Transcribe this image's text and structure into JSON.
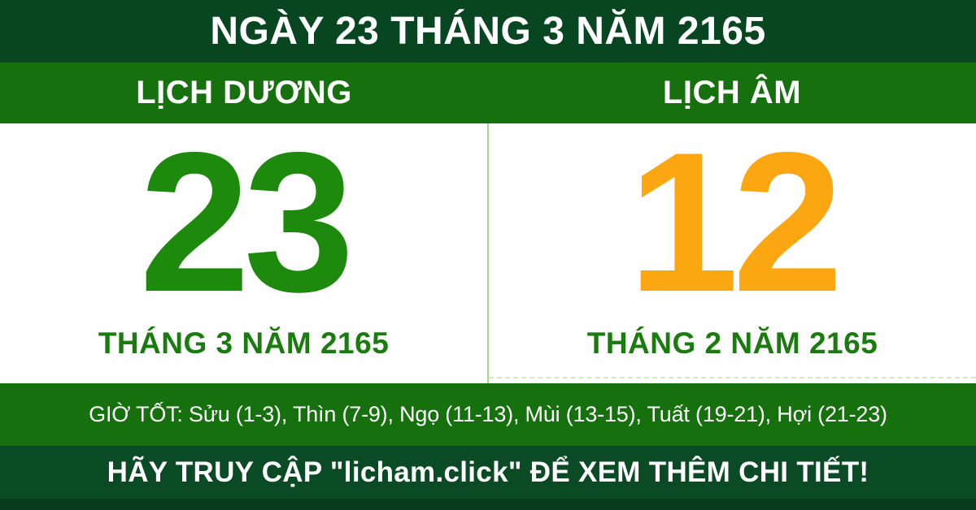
{
  "header": {
    "title": "NGÀY 23 THÁNG 3 NĂM 2165"
  },
  "calendars": {
    "solar": {
      "label": "LỊCH DƯƠNG",
      "day": "23",
      "month_year": "THÁNG 3 NĂM 2165"
    },
    "lunar": {
      "label": "LỊCH ÂM",
      "day": "12",
      "month_year": "THÁNG 2 NĂM 2165"
    }
  },
  "good_hours": {
    "text": "GIỜ TỐT: Sửu (1-3), Thìn (7-9), Ngọ (11-13), Mùi (13-15), Tuất (19-21), Hợi (21-23)"
  },
  "footer": {
    "cta": "HÃY TRUY CẬP \"licham.click\" ĐỂ XEM THÊM CHI TIẾT!"
  },
  "colors": {
    "header_bg": "#084621",
    "band_bg": "#15700D",
    "hours_bg": "#15700D",
    "footer_bg": "#0A4A24",
    "footer_strip": "#083C1C",
    "solar_green": "#1E8A0D",
    "lunar_orange": "#FCA712",
    "month_green": "#1A7B0F",
    "divider": "#ABD78E",
    "dashed_line": "#D4E8C6",
    "text_light": "#FFFFFF",
    "panel_bg": "#FFFFFF"
  }
}
